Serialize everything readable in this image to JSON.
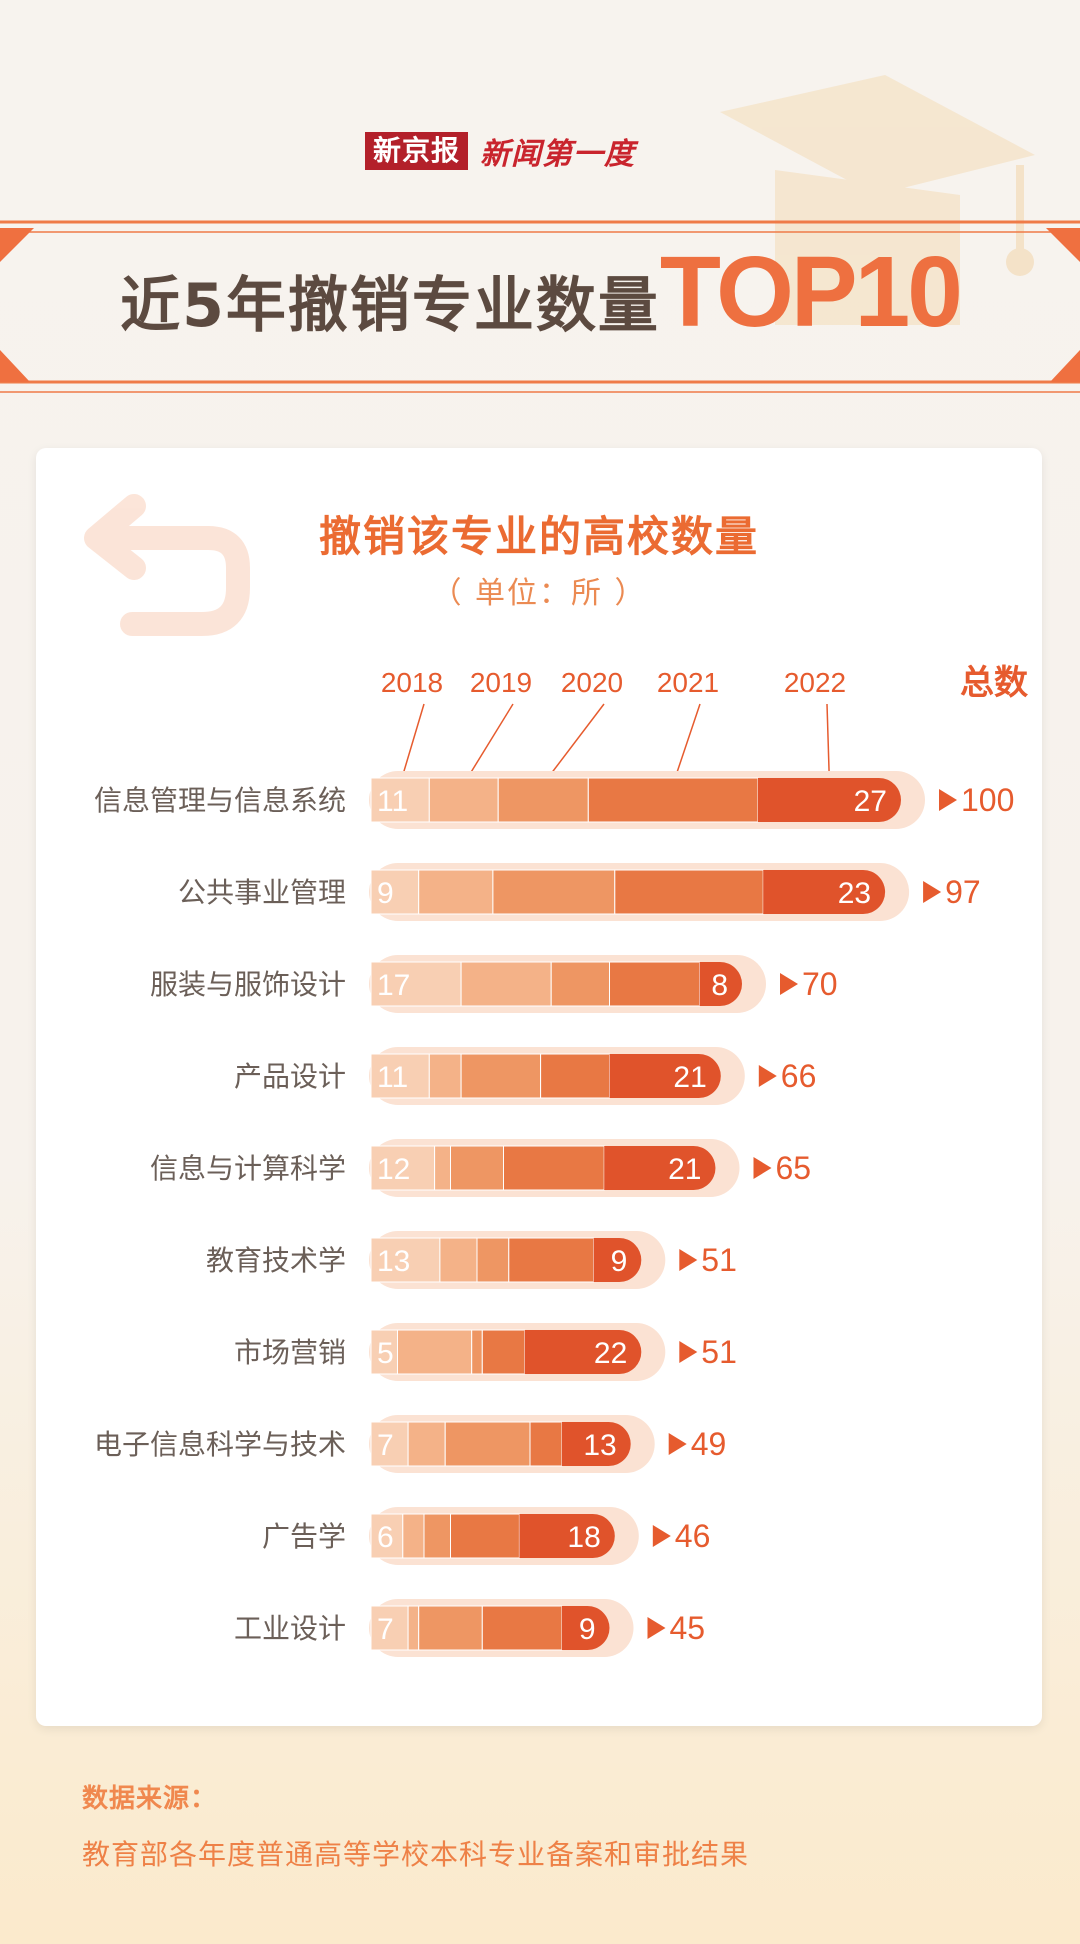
{
  "brand": {
    "name": "新京报",
    "column": "新闻第一度"
  },
  "header": {
    "title_main": "近5年撤销专业数量",
    "title_emphasis": "TOP10"
  },
  "chart_data": {
    "type": "bar",
    "title": "撤销该专业的高校数量",
    "unit": "（ 单位：所 ）",
    "total_label": "总数",
    "categories": [
      "信息管理与信息系统",
      "公共事业管理",
      "服装与服饰设计",
      "产品设计",
      "信息与计算科学",
      "教育技术学",
      "市场营销",
      "电子信息科学与技术",
      "广告学",
      "工业设计"
    ],
    "series": [
      {
        "name": "2018",
        "values": [
          11,
          9,
          17,
          11,
          12,
          13,
          5,
          7,
          6,
          7
        ]
      },
      {
        "name": "2019",
        "values": [
          13,
          14,
          17,
          6,
          3,
          7,
          14,
          7,
          4,
          2
        ]
      },
      {
        "name": "2020",
        "values": [
          17,
          23,
          11,
          15,
          10,
          6,
          2,
          16,
          5,
          12
        ]
      },
      {
        "name": "2021",
        "values": [
          32,
          28,
          17,
          13,
          19,
          16,
          8,
          6,
          13,
          15
        ]
      },
      {
        "name": "2022",
        "values": [
          27,
          23,
          8,
          21,
          21,
          9,
          22,
          13,
          18,
          9
        ]
      }
    ],
    "totals": [
      100,
      97,
      70,
      66,
      65,
      51,
      51,
      49,
      46,
      45
    ],
    "colors": [
      "#f8cfb3",
      "#f4b288",
      "#ee9663",
      "#e87844",
      "#e0532b"
    ],
    "capsule_color": "#fbe2d3",
    "label_color": "#6b5f58",
    "accent": "#e65b2e"
  },
  "source": {
    "label": "数据来源：",
    "text": "教育部各年度普通高等学校本科专业备案和审批结果"
  }
}
